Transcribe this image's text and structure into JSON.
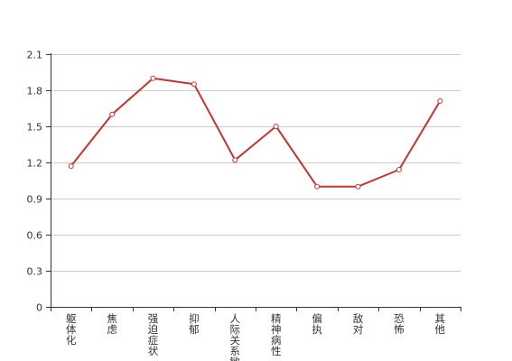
{
  "chart_data": {
    "type": "line",
    "categories": [
      "躯体化",
      "焦虑",
      "强迫症状",
      "抑郁",
      "人际关系敏感",
      "精神病性",
      "偏执",
      "敌对",
      "恐怖",
      "其他"
    ],
    "series": [
      {
        "values": [
          1.17,
          1.6,
          1.9,
          1.85,
          1.22,
          1.5,
          1.0,
          1.0,
          1.14,
          1.71
        ]
      }
    ],
    "y_ticks": [
      "0",
      "0.3",
      "0.6",
      "0.9",
      "1.2",
      "1.5",
      "1.8",
      "2.1"
    ],
    "ylim": [
      0,
      2.1
    ],
    "grid": true,
    "colors": {
      "series": "#c23531",
      "grid": "#cccccc",
      "axis": "#333333"
    }
  }
}
